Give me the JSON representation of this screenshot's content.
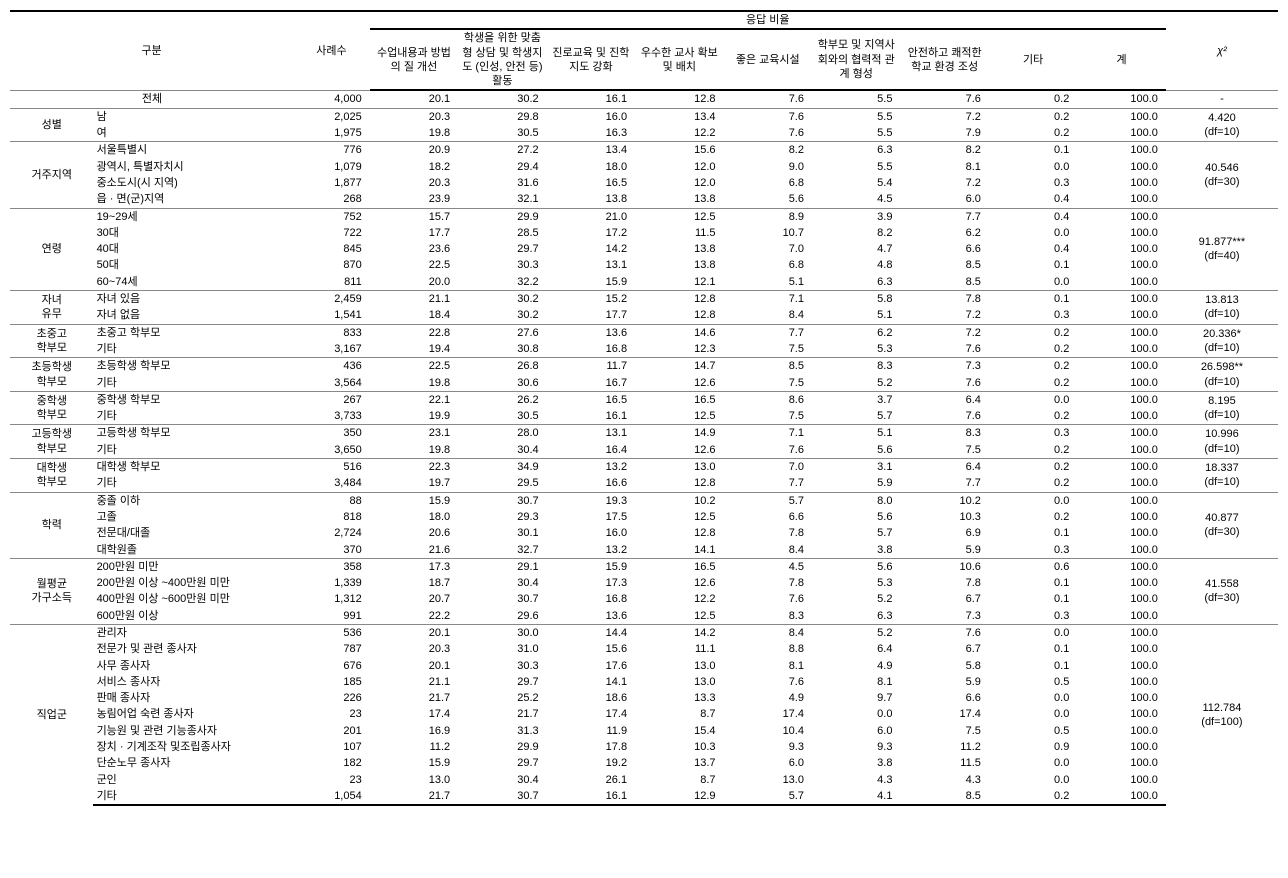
{
  "columns": {
    "group_header": "응답 비율",
    "cat_label": "구분",
    "n": "사례수",
    "resp": [
      "수업내용과 방법의 질 개선",
      "학생을 위한 맞춤형 상담 및 학생지도 (인성, 안전 등) 활동",
      "진로교육 및 진학지도 강화",
      "우수한 교사 확보 및 배치",
      "좋은 교육시설",
      "학부모 및 지역사회와의 협력적 관계 형성",
      "안전하고 쾌적한 학교 환경 조성",
      "기타",
      "계"
    ],
    "chi": "χ²"
  },
  "groups": [
    {
      "cat": "",
      "chi": "-",
      "rows": [
        {
          "label": "전체",
          "center_label": true,
          "n": "4,000",
          "v": [
            "20.1",
            "30.2",
            "16.1",
            "12.8",
            "7.6",
            "5.5",
            "7.6",
            "0.2",
            "100.0"
          ]
        }
      ]
    },
    {
      "cat": "성별",
      "chi": "4.420\n(df=10)",
      "rows": [
        {
          "label": "남",
          "n": "2,025",
          "v": [
            "20.3",
            "29.8",
            "16.0",
            "13.4",
            "7.6",
            "5.5",
            "7.2",
            "0.2",
            "100.0"
          ]
        },
        {
          "label": "여",
          "n": "1,975",
          "v": [
            "19.8",
            "30.5",
            "16.3",
            "12.2",
            "7.6",
            "5.5",
            "7.9",
            "0.2",
            "100.0"
          ]
        }
      ]
    },
    {
      "cat": "거주지역",
      "chi": "40.546\n(df=30)",
      "rows": [
        {
          "label": "서울특별시",
          "n": "776",
          "v": [
            "20.9",
            "27.2",
            "13.4",
            "15.6",
            "8.2",
            "6.3",
            "8.2",
            "0.1",
            "100.0"
          ]
        },
        {
          "label": "광역시, 특별자치시",
          "n": "1,079",
          "v": [
            "18.2",
            "29.4",
            "18.0",
            "12.0",
            "9.0",
            "5.5",
            "8.1",
            "0.0",
            "100.0"
          ]
        },
        {
          "label": "중소도시(시 지역)",
          "n": "1,877",
          "v": [
            "20.3",
            "31.6",
            "16.5",
            "12.0",
            "6.8",
            "5.4",
            "7.2",
            "0.3",
            "100.0"
          ]
        },
        {
          "label": "읍 · 면(군)지역",
          "n": "268",
          "v": [
            "23.9",
            "32.1",
            "13.8",
            "13.8",
            "5.6",
            "4.5",
            "6.0",
            "0.4",
            "100.0"
          ]
        }
      ]
    },
    {
      "cat": "연령",
      "chi": "91.877***\n(df=40)",
      "rows": [
        {
          "label": "19~29세",
          "n": "752",
          "v": [
            "15.7",
            "29.9",
            "21.0",
            "12.5",
            "8.9",
            "3.9",
            "7.7",
            "0.4",
            "100.0"
          ]
        },
        {
          "label": "30대",
          "n": "722",
          "v": [
            "17.7",
            "28.5",
            "17.2",
            "11.5",
            "10.7",
            "8.2",
            "6.2",
            "0.0",
            "100.0"
          ]
        },
        {
          "label": "40대",
          "n": "845",
          "v": [
            "23.6",
            "29.7",
            "14.2",
            "13.8",
            "7.0",
            "4.7",
            "6.6",
            "0.4",
            "100.0"
          ]
        },
        {
          "label": "50대",
          "n": "870",
          "v": [
            "22.5",
            "30.3",
            "13.1",
            "13.8",
            "6.8",
            "4.8",
            "8.5",
            "0.1",
            "100.0"
          ]
        },
        {
          "label": "60~74세",
          "n": "811",
          "v": [
            "20.0",
            "32.2",
            "15.9",
            "12.1",
            "5.1",
            "6.3",
            "8.5",
            "0.0",
            "100.0"
          ]
        }
      ]
    },
    {
      "cat": "자녀\n유무",
      "chi": "13.813\n(df=10)",
      "rows": [
        {
          "label": "자녀 있음",
          "n": "2,459",
          "v": [
            "21.1",
            "30.2",
            "15.2",
            "12.8",
            "7.1",
            "5.8",
            "7.8",
            "0.1",
            "100.0"
          ]
        },
        {
          "label": "자녀 없음",
          "n": "1,541",
          "v": [
            "18.4",
            "30.2",
            "17.7",
            "12.8",
            "8.4",
            "5.1",
            "7.2",
            "0.3",
            "100.0"
          ]
        }
      ]
    },
    {
      "cat": "초중고\n학부모",
      "chi": "20.336*\n(df=10)",
      "rows": [
        {
          "label": "초중고 학부모",
          "n": "833",
          "v": [
            "22.8",
            "27.6",
            "13.6",
            "14.6",
            "7.7",
            "6.2",
            "7.2",
            "0.2",
            "100.0"
          ]
        },
        {
          "label": "기타",
          "n": "3,167",
          "v": [
            "19.4",
            "30.8",
            "16.8",
            "12.3",
            "7.5",
            "5.3",
            "7.6",
            "0.2",
            "100.0"
          ]
        }
      ]
    },
    {
      "cat": "초등학생\n학부모",
      "chi": "26.598**\n(df=10)",
      "rows": [
        {
          "label": "초등학생 학부모",
          "n": "436",
          "v": [
            "22.5",
            "26.8",
            "11.7",
            "14.7",
            "8.5",
            "8.3",
            "7.3",
            "0.2",
            "100.0"
          ]
        },
        {
          "label": "기타",
          "n": "3,564",
          "v": [
            "19.8",
            "30.6",
            "16.7",
            "12.6",
            "7.5",
            "5.2",
            "7.6",
            "0.2",
            "100.0"
          ]
        }
      ]
    },
    {
      "cat": "중학생\n학부모",
      "chi": "8.195\n(df=10)",
      "rows": [
        {
          "label": "중학생 학부모",
          "n": "267",
          "v": [
            "22.1",
            "26.2",
            "16.5",
            "16.5",
            "8.6",
            "3.7",
            "6.4",
            "0.0",
            "100.0"
          ]
        },
        {
          "label": "기타",
          "n": "3,733",
          "v": [
            "19.9",
            "30.5",
            "16.1",
            "12.5",
            "7.5",
            "5.7",
            "7.6",
            "0.2",
            "100.0"
          ]
        }
      ]
    },
    {
      "cat": "고등학생\n학부모",
      "chi": "10.996\n(df=10)",
      "rows": [
        {
          "label": "고등학생 학부모",
          "n": "350",
          "v": [
            "23.1",
            "28.0",
            "13.1",
            "14.9",
            "7.1",
            "5.1",
            "8.3",
            "0.3",
            "100.0"
          ]
        },
        {
          "label": "기타",
          "n": "3,650",
          "v": [
            "19.8",
            "30.4",
            "16.4",
            "12.6",
            "7.6",
            "5.6",
            "7.5",
            "0.2",
            "100.0"
          ]
        }
      ]
    },
    {
      "cat": "대학생\n학부모",
      "chi": "18.337\n(df=10)",
      "rows": [
        {
          "label": "대학생 학부모",
          "n": "516",
          "v": [
            "22.3",
            "34.9",
            "13.2",
            "13.0",
            "7.0",
            "3.1",
            "6.4",
            "0.2",
            "100.0"
          ]
        },
        {
          "label": "기타",
          "n": "3,484",
          "v": [
            "19.7",
            "29.5",
            "16.6",
            "12.8",
            "7.7",
            "5.9",
            "7.7",
            "0.2",
            "100.0"
          ]
        }
      ]
    },
    {
      "cat": "학력",
      "chi": "40.877\n(df=30)",
      "rows": [
        {
          "label": "중졸 이하",
          "n": "88",
          "v": [
            "15.9",
            "30.7",
            "19.3",
            "10.2",
            "5.7",
            "8.0",
            "10.2",
            "0.0",
            "100.0"
          ]
        },
        {
          "label": "고졸",
          "n": "818",
          "v": [
            "18.0",
            "29.3",
            "17.5",
            "12.5",
            "6.6",
            "5.6",
            "10.3",
            "0.2",
            "100.0"
          ]
        },
        {
          "label": "전문대/대졸",
          "n": "2,724",
          "v": [
            "20.6",
            "30.1",
            "16.0",
            "12.8",
            "7.8",
            "5.7",
            "6.9",
            "0.1",
            "100.0"
          ]
        },
        {
          "label": "대학원졸",
          "n": "370",
          "v": [
            "21.6",
            "32.7",
            "13.2",
            "14.1",
            "8.4",
            "3.8",
            "5.9",
            "0.3",
            "100.0"
          ]
        }
      ]
    },
    {
      "cat": "월평균\n가구소득",
      "chi": "41.558\n(df=30)",
      "rows": [
        {
          "label": "200만원 미만",
          "n": "358",
          "v": [
            "17.3",
            "29.1",
            "15.9",
            "16.5",
            "4.5",
            "5.6",
            "10.6",
            "0.6",
            "100.0"
          ]
        },
        {
          "label": "200만원 이상 ~400만원 미만",
          "n": "1,339",
          "v": [
            "18.7",
            "30.4",
            "17.3",
            "12.6",
            "7.8",
            "5.3",
            "7.8",
            "0.1",
            "100.0"
          ]
        },
        {
          "label": "400만원 이상 ~600만원 미만",
          "n": "1,312",
          "v": [
            "20.7",
            "30.7",
            "16.8",
            "12.2",
            "7.6",
            "5.2",
            "6.7",
            "0.1",
            "100.0"
          ]
        },
        {
          "label": "600만원 이상",
          "n": "991",
          "v": [
            "22.2",
            "29.6",
            "13.6",
            "12.5",
            "8.3",
            "6.3",
            "7.3",
            "0.3",
            "100.0"
          ]
        }
      ]
    },
    {
      "cat": "직업군",
      "chi": "112.784\n(df=100)",
      "rows": [
        {
          "label": "관리자",
          "n": "536",
          "v": [
            "20.1",
            "30.0",
            "14.4",
            "14.2",
            "8.4",
            "5.2",
            "7.6",
            "0.0",
            "100.0"
          ]
        },
        {
          "label": "전문가 및 관련  종사자",
          "n": "787",
          "v": [
            "20.3",
            "31.0",
            "15.6",
            "11.1",
            "8.8",
            "6.4",
            "6.7",
            "0.1",
            "100.0"
          ]
        },
        {
          "label": "사무 종사자",
          "n": "676",
          "v": [
            "20.1",
            "30.3",
            "17.6",
            "13.0",
            "8.1",
            "4.9",
            "5.8",
            "0.1",
            "100.0"
          ]
        },
        {
          "label": "서비스 종사자",
          "n": "185",
          "v": [
            "21.1",
            "29.7",
            "14.1",
            "13.0",
            "7.6",
            "8.1",
            "5.9",
            "0.5",
            "100.0"
          ]
        },
        {
          "label": "판매 종사자",
          "n": "226",
          "v": [
            "21.7",
            "25.2",
            "18.6",
            "13.3",
            "4.9",
            "9.7",
            "6.6",
            "0.0",
            "100.0"
          ]
        },
        {
          "label": "농림어업 숙련 종사자",
          "n": "23",
          "v": [
            "17.4",
            "21.7",
            "17.4",
            "8.7",
            "17.4",
            "0.0",
            "17.4",
            "0.0",
            "100.0"
          ]
        },
        {
          "label": "기능원 및 관련 기능종사자",
          "n": "201",
          "v": [
            "16.9",
            "31.3",
            "11.9",
            "15.4",
            "10.4",
            "6.0",
            "7.5",
            "0.5",
            "100.0"
          ]
        },
        {
          "label": "장치 · 기계조작 및조립종사자",
          "n": "107",
          "v": [
            "11.2",
            "29.9",
            "17.8",
            "10.3",
            "9.3",
            "9.3",
            "11.2",
            "0.9",
            "100.0"
          ]
        },
        {
          "label": "단순노무 종사자",
          "n": "182",
          "v": [
            "15.9",
            "29.7",
            "19.2",
            "13.7",
            "6.0",
            "3.8",
            "11.5",
            "0.0",
            "100.0"
          ]
        },
        {
          "label": "군인",
          "n": "23",
          "v": [
            "13.0",
            "30.4",
            "26.1",
            "8.7",
            "13.0",
            "4.3",
            "4.3",
            "0.0",
            "100.0"
          ]
        },
        {
          "label": "기타",
          "n": "1,054",
          "v": [
            "21.7",
            "30.7",
            "16.1",
            "12.9",
            "5.7",
            "4.1",
            "8.5",
            "0.2",
            "100.0"
          ]
        }
      ]
    }
  ]
}
